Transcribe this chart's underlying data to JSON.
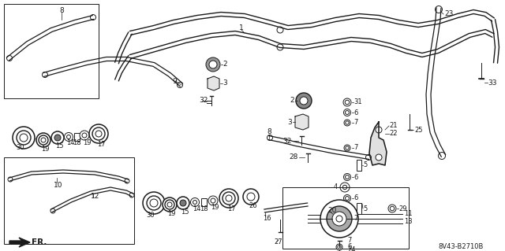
{
  "bg_color": "#ffffff",
  "line_color": "#1a1a1a",
  "diagram_code": "8V43-B2710B",
  "figsize": [
    6.4,
    3.19
  ],
  "dpi": 100
}
